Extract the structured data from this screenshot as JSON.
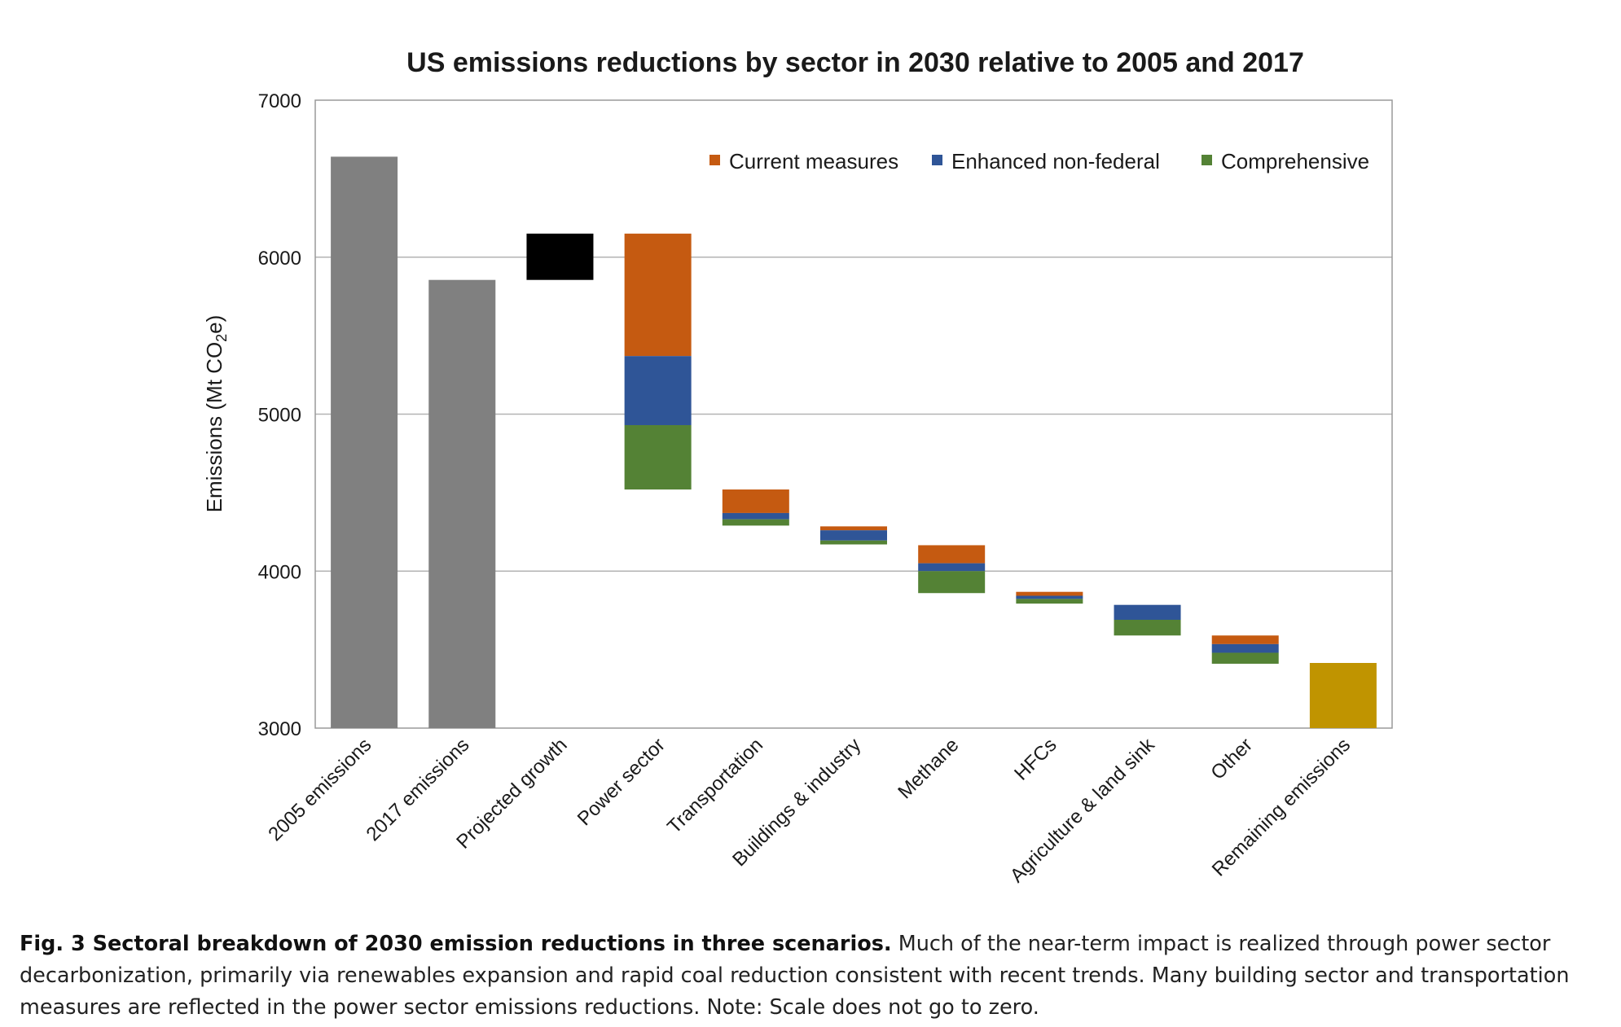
{
  "chart_data": {
    "type": "bar",
    "title": "US emissions reductions by sector in 2030 relative to 2005 and 2017",
    "ylabel": "Emissions (Mt CO",
    "ylabel_subscript": "2",
    "ylabel_suffix": "e)",
    "ylim": [
      3000,
      7000
    ],
    "yticks": [
      3000,
      4000,
      5000,
      6000,
      7000
    ],
    "grid": true,
    "legend_position": "top-right",
    "categories": [
      "2005 emissions",
      "2017 emissions",
      "Projected growth",
      "Power sector",
      "Transportation",
      "Buildings & industry",
      "Methane",
      "HFCs",
      "Agriculture & land sink",
      "Other",
      "Remaining emissions"
    ],
    "totals": [
      {
        "category": "2005 emissions",
        "value": 6640,
        "color": "#808080"
      },
      {
        "category": "2017 emissions",
        "value": 5855,
        "color": "#808080"
      },
      {
        "category": "Remaining emissions",
        "value": 3415,
        "color": "#c09400"
      }
    ],
    "growth": {
      "category": "Projected growth",
      "from": 5855,
      "to": 6150,
      "color": "#000000"
    },
    "series": [
      {
        "name": "Current measures",
        "color": "#c55a11"
      },
      {
        "name": "Enhanced non-federal",
        "color": "#2f5597"
      },
      {
        "name": "Comprehensive",
        "color": "#548235"
      }
    ],
    "reductions": [
      {
        "category": "Power sector",
        "top": 6150,
        "values": [
          780,
          440,
          410
        ]
      },
      {
        "category": "Transportation",
        "top": 4520,
        "values": [
          150,
          40,
          40
        ]
      },
      {
        "category": "Buildings & industry",
        "top": 4285,
        "values": [
          25,
          65,
          25
        ]
      },
      {
        "category": "Methane",
        "top": 4165,
        "values": [
          115,
          50,
          140
        ]
      },
      {
        "category": "HFCs",
        "top": 3868,
        "values": [
          25,
          20,
          30
        ]
      },
      {
        "category": "Agriculture & land sink",
        "top": 3785,
        "values": [
          0,
          95,
          100
        ]
      },
      {
        "category": "Other",
        "top": 3590,
        "values": [
          55,
          55,
          70
        ]
      }
    ]
  },
  "caption": {
    "bold": "Fig. 3 Sectoral breakdown of 2030 emission reductions in three scenarios.",
    "text": " Much of the near-term impact is realized through power sector decarbonization, primarily via renewables expansion and rapid coal reduction consistent with recent trends. Many building sector and transportation measures are reflected in the power sector emissions reductions. Note: Scale does not go to zero."
  }
}
